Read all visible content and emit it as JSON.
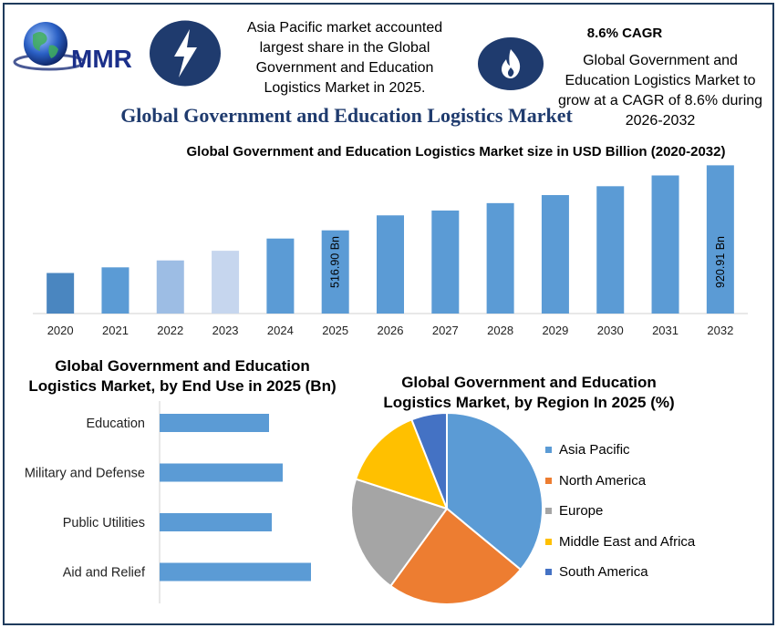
{
  "header": {
    "logo_text": "MMR",
    "icons": [
      "globe-icon",
      "lightning-bolt-icon",
      "flame-icon"
    ],
    "apac_callout": "Asia Pacific market accounted largest share in the Global Government and Education Logistics Market in 2025.",
    "cagr_title": "8.6% CAGR",
    "cagr_text": "Global Government and Education Logistics Market to grow at a CAGR of 8.6% during 2026-2032",
    "main_title": "Global Government and Education Logistics Market"
  },
  "colors": {
    "primary_bar": "#5b9bd5",
    "bar_2020": "#4a86c0",
    "bar_2022": "#9dbde4",
    "bar_2023": "#c6d6ee",
    "badge": "#1f3b6e",
    "title_blue": "#1f3b6e",
    "asia_pacific": "#5b9bd5",
    "north_america": "#ed7d31",
    "europe": "#a5a5a5",
    "middle_east_africa": "#ffc000",
    "south_america": "#4472c4"
  },
  "chart_data": [
    {
      "type": "bar",
      "title": "Global Government and Education Logistics Market size in USD Billion (2020-2032)",
      "categories": [
        "2020",
        "2021",
        "2022",
        "2023",
        "2024",
        "2025",
        "2026",
        "2027",
        "2028",
        "2029",
        "2030",
        "2031",
        "2032"
      ],
      "values": [
        252,
        287,
        330,
        390,
        466,
        516.9,
        610,
        640,
        686,
        736,
        791,
        858,
        920.91
      ],
      "data_labels": {
        "5": "516.90 Bn",
        "12": "920.91 Bn"
      },
      "ylim": [
        0,
        940
      ],
      "grid": false
    },
    {
      "type": "bar",
      "orientation": "horizontal",
      "title": "Global Government and Education Logistics Market, by End Use in 2025 (Bn)",
      "categories": [
        "Education",
        "Military and Defense",
        "Public Utilities",
        "Aid and Relief"
      ],
      "values": [
        120,
        135,
        123,
        166
      ],
      "grid": false
    },
    {
      "type": "pie",
      "title": "Global Government and Education Logistics Market, by Region In 2025 (%)",
      "categories": [
        "Asia Pacific",
        "North America",
        "Europe",
        "Middle East and Africa",
        "South America"
      ],
      "values": [
        36,
        24,
        20,
        14,
        6
      ],
      "legend_position": "right"
    }
  ]
}
